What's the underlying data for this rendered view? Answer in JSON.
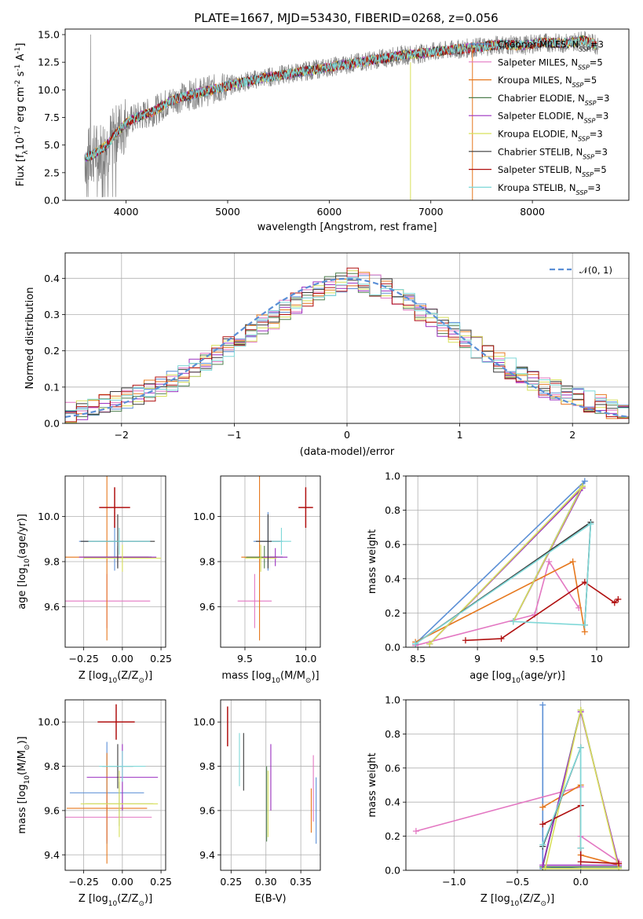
{
  "figure": {
    "title": "PLATE=1667, MJD=53430, FIBERID=0268, z=0.056"
  },
  "colors": {
    "Chabrier MILES": "#5b8fd6",
    "Salpeter MILES": "#e377c2",
    "Kroupa MILES": "#e6781e",
    "Chabrier ELODIE": "#4f7f4f",
    "Salpeter ELODIE": "#9b30c0",
    "Kroupa ELODIE": "#d8e05a",
    "Chabrier STELIB": "#3a3a3a",
    "Salpeter STELIB": "#b01010",
    "Kroupa STELIB": "#7fd8d8",
    "data": "#808080"
  },
  "legend": [
    {
      "label": "Chabrier MILES, N",
      "n": "=3"
    },
    {
      "label": "Salpeter MILES, N",
      "n": "=5"
    },
    {
      "label": "Kroupa MILES, N",
      "n": "=5"
    },
    {
      "label": "Chabrier ELODIE, N",
      "n": "=3"
    },
    {
      "label": "Salpeter ELODIE, N",
      "n": "=3"
    },
    {
      "label": "Kroupa ELODIE, N",
      "n": "=3"
    },
    {
      "label": "Chabrier STELIB, N",
      "n": "=3"
    },
    {
      "label": "Salpeter STELIB, N",
      "n": "=5"
    },
    {
      "label": "Kroupa STELIB, N",
      "n": "=3"
    }
  ],
  "legend_sub": "SSP",
  "chart_data": [
    {
      "id": "spectrum",
      "type": "line",
      "xlabel": "wavelength [Angstrom, rest frame]",
      "ylabel_main": "Flux [f",
      "ylabel_rest": "10",
      "ylabel_tail": " erg cm",
      "ylabel_tail2": " s",
      "ylabel_tail3": " A",
      "ylabel_close": "]",
      "ylabel_sup1": "-17",
      "ylabel_sup2": "-2",
      "ylabel_sup3": "-1",
      "ylabel_sup4": "-1",
      "ylabel_sub": "λ",
      "xlim": [
        3400,
        8950
      ],
      "ylim": [
        0,
        15.5
      ],
      "xticks": [
        4000,
        5000,
        6000,
        7000,
        8000
      ],
      "yticks": [
        0.0,
        2.5,
        5.0,
        7.5,
        10.0,
        12.5,
        15.0
      ],
      "continuum": {
        "x": [
          3590,
          3700,
          3800,
          3900,
          4000,
          4100,
          4200,
          4300,
          4400,
          4500,
          4700,
          4900,
          5100,
          5300,
          5500,
          5700,
          5900,
          6100,
          6300,
          6500,
          6700,
          6900,
          7100,
          7300,
          7500,
          7700,
          7900,
          8100,
          8300,
          8500,
          8650
        ],
        "y": [
          3.8,
          4.3,
          4.9,
          6.0,
          7.0,
          7.5,
          7.8,
          8.2,
          8.8,
          9.2,
          9.7,
          10.1,
          10.6,
          11.0,
          11.3,
          11.6,
          11.9,
          12.2,
          12.5,
          12.8,
          13.1,
          13.3,
          13.5,
          13.7,
          13.9,
          14.1,
          14.0,
          14.3,
          14.2,
          14.5,
          14.0
        ]
      }
    },
    {
      "id": "residuals",
      "type": "step",
      "xlabel": "(data-model)/error",
      "ylabel": "Normed distribution",
      "xlim": [
        -2.5,
        2.5
      ],
      "ylim": [
        0,
        0.47
      ],
      "xticks": [
        -2,
        -1,
        0,
        1,
        2
      ],
      "xtick_labels": [
        "−2",
        "−1",
        "0",
        "1",
        "2"
      ],
      "yticks": [
        0.0,
        0.1,
        0.2,
        0.3,
        0.4
      ],
      "normal_label": "𝒩(0, 1)",
      "bin_start": -2.5,
      "bin_width": 0.1,
      "base_hist": [
        0.03,
        0.035,
        0.04,
        0.05,
        0.06,
        0.07,
        0.08,
        0.09,
        0.1,
        0.115,
        0.13,
        0.15,
        0.17,
        0.19,
        0.21,
        0.23,
        0.25,
        0.27,
        0.29,
        0.31,
        0.33,
        0.35,
        0.37,
        0.38,
        0.39,
        0.4,
        0.39,
        0.38,
        0.37,
        0.35,
        0.33,
        0.31,
        0.29,
        0.27,
        0.25,
        0.23,
        0.21,
        0.19,
        0.17,
        0.15,
        0.13,
        0.115,
        0.1,
        0.09,
        0.08,
        0.07,
        0.06,
        0.05,
        0.04,
        0.03
      ]
    },
    {
      "id": "age_vs_Z",
      "type": "errorbar",
      "xlabel": "Z [log",
      "xlabel_sub": "10",
      "xlabel_mid": "(Z/Z",
      "xlabel_sub2": "⊙",
      "xlabel_end": ")]",
      "ylabel": "age  [log",
      "ylabel_sub": "10",
      "ylabel_end": "(age/yr)]",
      "xlim": [
        -0.37,
        0.28
      ],
      "ylim": [
        9.42,
        10.18
      ],
      "xticks": [
        -0.25,
        0.0,
        0.25
      ],
      "xtick_labels": [
        "−0.25",
        "0.00",
        "0.25"
      ],
      "yticks": [
        9.6,
        9.8,
        10.0
      ],
      "points": [
        {
          "series": "Chabrier MILES",
          "x": -0.05,
          "xerr": 0.23,
          "y": 9.89,
          "yerr": 0.13
        },
        {
          "series": "Salpeter MILES",
          "x": -0.1,
          "xerr": 0.28,
          "y": 9.625,
          "yerr": 0.12
        },
        {
          "series": "Kroupa MILES",
          "x": -0.1,
          "xerr": 0.27,
          "y": 9.82,
          "yerr": 0.37
        },
        {
          "series": "Chabrier ELODIE",
          "x": -0.03,
          "xerr": 0.22,
          "y": 9.82,
          "yerr": 0.05
        },
        {
          "series": "Salpeter ELODIE",
          "x": -0.03,
          "xerr": 0.25,
          "y": 9.82,
          "yerr": 0.04
        },
        {
          "series": "Kroupa ELODIE",
          "x": 0.0,
          "xerr": 0.25,
          "y": 9.815,
          "yerr": 0.06
        },
        {
          "series": "Chabrier STELIB",
          "x": -0.03,
          "xerr": 0.24,
          "y": 9.89,
          "yerr": 0.12
        },
        {
          "series": "Salpeter STELIB",
          "x": -0.05,
          "xerr": 0.1,
          "y": 10.04,
          "yerr": 0.09
        },
        {
          "series": "Kroupa STELIB",
          "x": -0.02,
          "xerr": 0.2,
          "y": 9.89,
          "yerr": 0.06
        }
      ]
    },
    {
      "id": "age_vs_mass",
      "type": "errorbar",
      "xlabel": "mass [log",
      "xlabel_sub": "10",
      "xlabel_mid": "(M/M",
      "xlabel_sub2": "⊙",
      "xlabel_end": ")]",
      "xlim": [
        9.3,
        10.12
      ],
      "ylim": [
        9.42,
        10.18
      ],
      "xticks": [
        9.5,
        10.0
      ],
      "xtick_labels": [
        "9.5",
        "10.0"
      ],
      "yticks": [
        9.6,
        9.8,
        10.0
      ],
      "points": [
        {
          "series": "Chabrier MILES",
          "x": 9.69,
          "xerr": 0.12,
          "y": 9.89,
          "yerr": 0.13
        },
        {
          "series": "Salpeter MILES",
          "x": 9.58,
          "xerr": 0.14,
          "y": 9.625,
          "yerr": 0.12
        },
        {
          "series": "Kroupa MILES",
          "x": 9.62,
          "xerr": 0.15,
          "y": 9.82,
          "yerr": 0.37
        },
        {
          "series": "Chabrier ELODIE",
          "x": 9.66,
          "xerr": 0.15,
          "y": 9.82,
          "yerr": 0.05
        },
        {
          "series": "Salpeter ELODIE",
          "x": 9.75,
          "xerr": 0.1,
          "y": 9.82,
          "yerr": 0.04
        },
        {
          "series": "Kroupa ELODIE",
          "x": 9.63,
          "xerr": 0.13,
          "y": 9.815,
          "yerr": 0.06
        },
        {
          "series": "Chabrier STELIB",
          "x": 9.69,
          "xerr": 0.1,
          "y": 9.89,
          "yerr": 0.12
        },
        {
          "series": "Salpeter STELIB",
          "x": 10.0,
          "xerr": 0.06,
          "y": 10.04,
          "yerr": 0.09
        },
        {
          "series": "Kroupa STELIB",
          "x": 9.8,
          "xerr": 0.08,
          "y": 9.89,
          "yerr": 0.06
        }
      ]
    },
    {
      "id": "weight_vs_age",
      "type": "line",
      "xlabel": "age  [log",
      "xlabel_sub": "10",
      "xlabel_end": "(age/yr)]",
      "ylabel": "mass weight",
      "xlim": [
        8.4,
        10.27
      ],
      "ylim": [
        0,
        1.0
      ],
      "xticks": [
        8.5,
        9.0,
        9.5,
        10.0
      ],
      "yticks": [
        0.0,
        0.2,
        0.4,
        0.6,
        0.8,
        1.0
      ],
      "series": [
        {
          "name": "Chabrier MILES",
          "x": [
            8.48,
            9.9,
            9.3
          ],
          "y": [
            0.02,
            0.97,
            0.15
          ]
        },
        {
          "name": "Salpeter MILES",
          "x": [
            8.48,
            9.48,
            9.6,
            9.85
          ],
          "y": [
            0.01,
            0.19,
            0.5,
            0.23
          ]
        },
        {
          "name": "Kroupa MILES",
          "x": [
            8.48,
            9.8,
            9.9
          ],
          "y": [
            0.03,
            0.5,
            0.09
          ]
        },
        {
          "name": "Chabrier ELODIE",
          "x": [
            8.6,
            9.88,
            9.3
          ],
          "y": [
            0.02,
            0.94,
            0.15
          ]
        },
        {
          "name": "Salpeter ELODIE",
          "x": [
            8.6,
            9.88,
            9.3
          ],
          "y": [
            0.02,
            0.93,
            0.15
          ]
        },
        {
          "name": "Kroupa ELODIE",
          "x": [
            8.6,
            9.88,
            9.3
          ],
          "y": [
            0.02,
            0.94,
            0.15
          ]
        },
        {
          "name": "Chabrier STELIB",
          "x": [
            8.48,
            9.95,
            9.9
          ],
          "y": [
            0.02,
            0.73,
            0.13
          ]
        },
        {
          "name": "Salpeter STELIB",
          "x": [
            8.9,
            9.2,
            9.9,
            10.15,
            10.18
          ],
          "y": [
            0.04,
            0.05,
            0.38,
            0.26,
            0.28
          ]
        },
        {
          "name": "Kroupa STELIB",
          "x": [
            8.48,
            9.95,
            9.9,
            9.3
          ],
          "y": [
            0.02,
            0.72,
            0.13,
            0.15
          ]
        }
      ]
    },
    {
      "id": "mass_vs_Z",
      "type": "errorbar",
      "xlabel": "Z [log",
      "xlabel_sub": "10",
      "xlabel_mid": "(Z/Z",
      "xlabel_sub2": "⊙",
      "xlabel_end": ")]",
      "ylabel": "mass [log",
      "ylabel_sub": "10",
      "ylabel_mid": "(M/M",
      "ylabel_sub2": "⊙",
      "ylabel_end": ")]",
      "xlim": [
        -0.37,
        0.28
      ],
      "ylim": [
        9.33,
        10.1
      ],
      "xticks": [
        -0.25,
        0.0,
        0.25
      ],
      "xtick_labels": [
        "−0.25",
        "0.00",
        "0.25"
      ],
      "yticks": [
        9.4,
        9.6,
        9.8,
        10.0
      ],
      "points": [
        {
          "series": "Chabrier MILES",
          "x": -0.1,
          "xerr": 0.24,
          "y": 9.68,
          "yerr": 0.23
        },
        {
          "series": "Salpeter MILES",
          "x": -0.1,
          "xerr": 0.29,
          "y": 9.57,
          "yerr": 0.11
        },
        {
          "series": "Kroupa MILES",
          "x": -0.1,
          "xerr": 0.26,
          "y": 9.61,
          "yerr": 0.25
        },
        {
          "series": "Chabrier ELODIE",
          "x": -0.02,
          "xerr": 0.22,
          "y": 9.63,
          "yerr": 0.1
        },
        {
          "series": "Salpeter ELODIE",
          "x": 0.0,
          "xerr": 0.23,
          "y": 9.75,
          "yerr": 0.15
        },
        {
          "series": "Kroupa ELODIE",
          "x": -0.02,
          "xerr": 0.25,
          "y": 9.63,
          "yerr": 0.15
        },
        {
          "series": "Chabrier STELIB",
          "x": -0.03,
          "xerr": 0.1,
          "y": 9.8,
          "yerr": 0.1
        },
        {
          "series": "Salpeter STELIB",
          "x": -0.04,
          "xerr": 0.12,
          "y": 10.0,
          "yerr": 0.08
        },
        {
          "series": "Kroupa STELIB",
          "x": 0.0,
          "xerr": 0.15,
          "y": 9.8,
          "yerr": 0.07
        }
      ]
    },
    {
      "id": "mass_vs_EBV",
      "type": "errorbar",
      "xlabel": "E(B-V)",
      "xlim": [
        0.235,
        0.378
      ],
      "ylim": [
        9.33,
        10.1
      ],
      "xticks": [
        0.25,
        0.3,
        0.35
      ],
      "xtick_labels": [
        "0.25",
        "0.30",
        "0.35"
      ],
      "yticks": [
        9.4,
        9.6,
        9.8,
        10.0
      ],
      "points": [
        {
          "series": "Chabrier MILES",
          "x": 0.372,
          "xerr": 0,
          "y": 9.6,
          "yerr": 0.15
        },
        {
          "series": "Salpeter MILES",
          "x": 0.368,
          "xerr": 0,
          "y": 9.7,
          "yerr": 0.15
        },
        {
          "series": "Kroupa MILES",
          "x": 0.365,
          "xerr": 0,
          "y": 9.6,
          "yerr": 0.1
        },
        {
          "series": "Chabrier ELODIE",
          "x": 0.301,
          "xerr": 0,
          "y": 9.63,
          "yerr": 0.17
        },
        {
          "series": "Salpeter ELODIE",
          "x": 0.307,
          "xerr": 0,
          "y": 9.75,
          "yerr": 0.15
        },
        {
          "series": "Kroupa ELODIE",
          "x": 0.303,
          "xerr": 0,
          "y": 9.63,
          "yerr": 0.15
        },
        {
          "series": "Chabrier STELIB",
          "x": 0.268,
          "xerr": 0,
          "y": 9.82,
          "yerr": 0.13
        },
        {
          "series": "Salpeter STELIB",
          "x": 0.245,
          "xerr": 0,
          "y": 9.98,
          "yerr": 0.09
        },
        {
          "series": "Kroupa STELIB",
          "x": 0.262,
          "xerr": 0,
          "y": 9.83,
          "yerr": 0.12
        }
      ]
    },
    {
      "id": "weight_vs_Z",
      "type": "line",
      "xlabel": "Z [log",
      "xlabel_sub": "10",
      "xlabel_mid": "(Z/Z",
      "xlabel_sub2": "⊙",
      "xlabel_end": ")]",
      "ylabel": "mass weight",
      "xlim": [
        -1.38,
        0.38
      ],
      "ylim": [
        0,
        1.0
      ],
      "xticks": [
        -1.0,
        -0.5,
        0.0
      ],
      "xtick_labels": [
        "−1.0",
        "−0.5",
        "0.0"
      ],
      "yticks": [
        0.0,
        0.2,
        0.4,
        0.6,
        0.8,
        1.0
      ],
      "series": [
        {
          "name": "Chabrier MILES",
          "x": [
            -0.3,
            -0.3,
            0.0
          ],
          "y": [
            0.97,
            0.01,
            0.02
          ]
        },
        {
          "name": "Salpeter MILES",
          "x": [
            -1.3,
            0.0,
            0.0,
            0.3
          ],
          "y": [
            0.23,
            0.49,
            0.2,
            0.05
          ]
        },
        {
          "name": "Kroupa MILES",
          "x": [
            -0.3,
            0.0,
            0.0,
            0.3
          ],
          "y": [
            0.37,
            0.5,
            0.09,
            0.03
          ]
        },
        {
          "name": "Chabrier ELODIE",
          "x": [
            -0.3,
            0.0,
            0.3,
            -0.3
          ],
          "y": [
            0.02,
            0.94,
            0.02,
            0.02
          ]
        },
        {
          "name": "Salpeter ELODIE",
          "x": [
            -0.3,
            0.0,
            0.3,
            -0.3
          ],
          "y": [
            0.03,
            0.93,
            0.03,
            0.03
          ]
        },
        {
          "name": "Kroupa ELODIE",
          "x": [
            -0.28,
            0.0,
            0.3,
            -0.28
          ],
          "y": [
            0.01,
            0.94,
            0.01,
            0.01
          ]
        },
        {
          "name": "Chabrier STELIB",
          "x": [
            -0.3,
            0.0,
            0.0
          ],
          "y": [
            0.14,
            0.72,
            0.13
          ]
        },
        {
          "name": "Salpeter STELIB",
          "x": [
            -0.3,
            0.0,
            0.0,
            0.3
          ],
          "y": [
            0.27,
            0.38,
            0.05,
            0.04
          ]
        },
        {
          "name": "Kroupa STELIB",
          "x": [
            -0.3,
            0.0,
            0.0
          ],
          "y": [
            0.15,
            0.72,
            0.13
          ]
        }
      ]
    }
  ]
}
